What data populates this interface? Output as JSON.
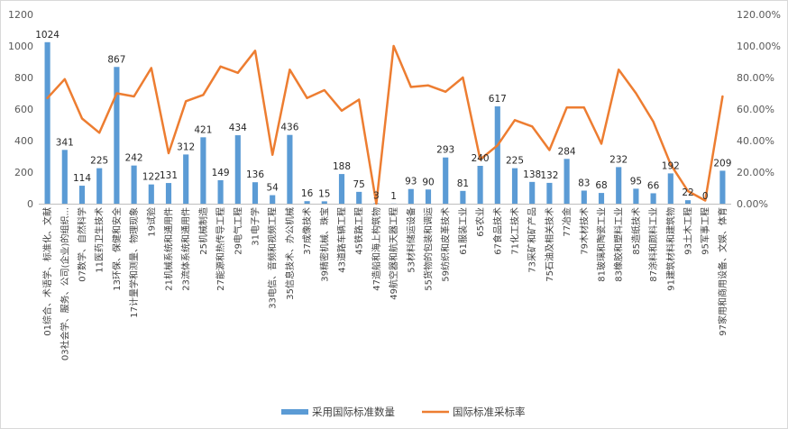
{
  "chart_data": {
    "type": "bar+line",
    "categories": [
      "01综合、术语学、标准化、文献",
      "03社会学、服务、公司(企业)的组织...",
      "07数学、自然科学",
      "11医药卫生技术",
      "13环保、保健和安全",
      "17计量学和测量、物理现象",
      "19试验",
      "21机械系统和通用件",
      "23流体系统和通用件",
      "25机械制造",
      "27能源和热传导工程",
      "29电气工程",
      "31电子学",
      "33电信、音频和视频工程",
      "35信息技术、办公机械",
      "37成像技术",
      "39精密机械、珠宝",
      "43道路车辆工程",
      "45铁路工程",
      "47造船和海上构筑物",
      "49航空器和航天器工程",
      "53材料储运设备",
      "55货物的包装和调运",
      "59纺织和皮革技术",
      "61服装工业",
      "65农业",
      "67食品技术",
      "71化工技术",
      "73采矿和矿产品",
      "75石油及相关技术",
      "77冶金",
      "79木材技术",
      "81玻璃和陶瓷工业",
      "83橡胶和塑料工业",
      "85造纸技术",
      "87涂料和颜料工业",
      "91建筑材料和建筑物",
      "93土木工程",
      "95军事工程",
      "97家用和商用设备、文娱、体育"
    ],
    "series": [
      {
        "name": "采用国际标准数量",
        "type": "bar",
        "axis": "left",
        "color": "#5B9BD5",
        "values": [
          1024,
          341,
          114,
          225,
          867,
          242,
          122,
          131,
          312,
          421,
          149,
          434,
          136,
          54,
          436,
          16,
          15,
          188,
          75,
          3,
          1,
          93,
          90,
          293,
          81,
          240,
          617,
          225,
          138,
          132,
          284,
          83,
          68,
          232,
          95,
          66,
          192,
          22,
          0,
          209
        ]
      },
      {
        "name": "国际标准采标率",
        "type": "line",
        "axis": "right",
        "color": "#ED7D31",
        "values": [
          67,
          79,
          54,
          45,
          70,
          68,
          86,
          32,
          65,
          69,
          87,
          83,
          97,
          31,
          85,
          67,
          72,
          59,
          66,
          0,
          100,
          74,
          75,
          71,
          80,
          28,
          37,
          53,
          49,
          34,
          61,
          61,
          38,
          85,
          70,
          52,
          25,
          8,
          2,
          68
        ]
      }
    ],
    "data_labels": [
      "1024",
      "341",
      "114",
      "225",
      "867",
      "242",
      "122",
      "131",
      "312",
      "421",
      "149",
      "434",
      "136",
      "54",
      "436",
      "16",
      "15",
      "188",
      "75",
      "3",
      "1",
      "93",
      "90",
      "293",
      "81",
      "240",
      "617",
      "225",
      "138",
      "132",
      "284",
      "83",
      "68",
      "232",
      "95",
      "66",
      "192",
      "22",
      "0",
      "209"
    ],
    "y_left": {
      "range": [
        0,
        1200
      ],
      "ticks": [
        "0",
        "200",
        "400",
        "600",
        "800",
        "1000",
        "1200"
      ]
    },
    "y_right": {
      "range": [
        0,
        120
      ],
      "ticks": [
        "0.00%",
        "20.00%",
        "40.00%",
        "60.00%",
        "80.00%",
        "100.00%",
        "120.00%"
      ]
    },
    "grid": false,
    "legend_position": "bottom"
  }
}
